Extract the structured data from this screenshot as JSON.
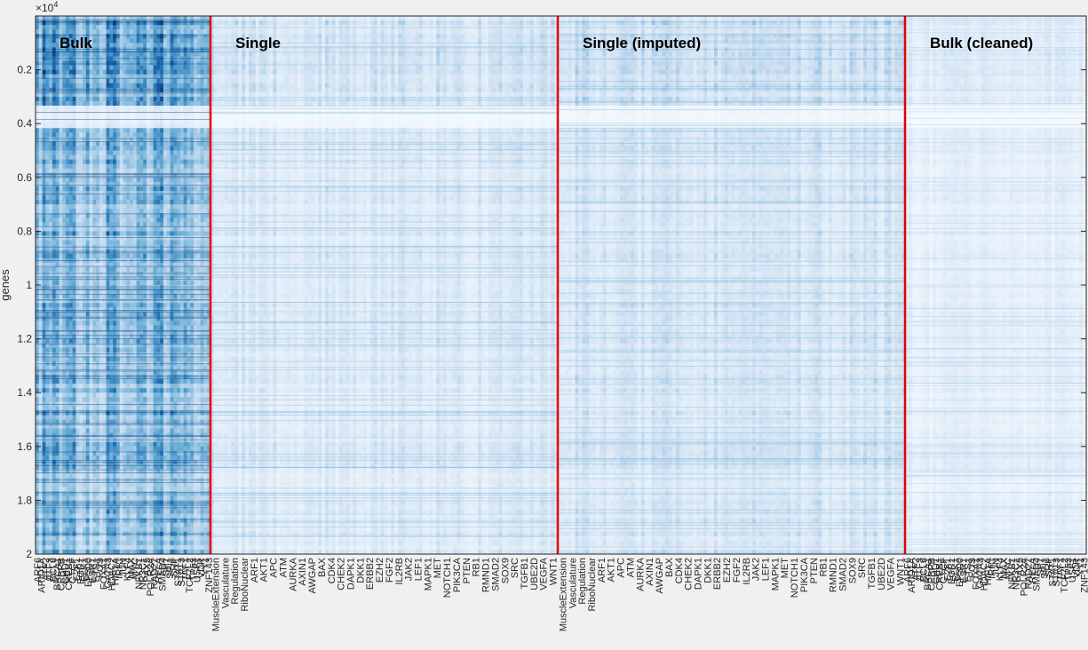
{
  "chart_data": {
    "type": "heatmap",
    "title": "",
    "ylabel": "genes",
    "xlabel": "",
    "y_exponent_label": "×10",
    "y_exponent_power": "4",
    "ylim": [
      0,
      20000
    ],
    "yticks": [
      {
        "value": 2000,
        "label": "0.2"
      },
      {
        "value": 4000,
        "label": "0.4"
      },
      {
        "value": 6000,
        "label": "0.6"
      },
      {
        "value": 8000,
        "label": "0.8"
      },
      {
        "value": 10000,
        "label": "1"
      },
      {
        "value": 12000,
        "label": "1.2"
      },
      {
        "value": 14000,
        "label": "1.4"
      },
      {
        "value": 16000,
        "label": "1.6"
      },
      {
        "value": 18000,
        "label": "1.8"
      },
      {
        "value": 20000,
        "label": "2"
      }
    ],
    "colormap": [
      "#f7fbff",
      "#c6dbef",
      "#6baed6",
      "#2171b5",
      "#08306b"
    ],
    "divider_color": "#e60000",
    "sections": [
      {
        "name": "Bulk",
        "columns": 52,
        "intensity": 0.42
      },
      {
        "name": "Single",
        "columns": 100,
        "intensity": 0.14
      },
      {
        "name": "Single (imputed)",
        "columns": 100,
        "intensity": 0.16
      },
      {
        "name": "Bulk (cleaned)",
        "columns": 52,
        "intensity": 0.09
      }
    ],
    "bulk_column_labels": [
      "ARF6",
      "ARID1A",
      "ATF2",
      "ATF3",
      "BCL6",
      "BRCA1",
      "CEBPB",
      "CHD1",
      "CREB1",
      "CTCF",
      "E2F1",
      "EGR1",
      "ELK1",
      "EP300",
      "ESR1",
      "ETS1",
      "FOS",
      "FOXA1",
      "GATA3",
      "HDAC2",
      "HIF1A",
      "IRF1",
      "JUN",
      "KLF4",
      "MAX",
      "MYC",
      "NFKB1",
      "NR3C1",
      "PAX5",
      "POLR2A",
      "RAD21",
      "RELA",
      "SMAD4",
      "SP1",
      "SPI1",
      "SRF",
      "STAT1",
      "STAT3",
      "TAF1",
      "TCF7L2",
      "TP53",
      "USF1",
      "VDR",
      "YY1",
      "ZNF143"
    ],
    "single_column_labels": [
      "MuscleExtension",
      "Vasculature",
      "Regulation",
      "RiboNuclear",
      "ARF1",
      "AKT1",
      "APC",
      "ATM",
      "AURKA",
      "AXIN1",
      "AWGAP",
      "BAX",
      "CDK4",
      "CHEK2",
      "DAPK1",
      "DKK1",
      "ERBB2",
      "EZH2",
      "FGF2",
      "IL2RB",
      "JAK2",
      "LEF1",
      "MAPK1",
      "MET",
      "NOTCH1",
      "PIK3CA",
      "PTEN",
      "RB1",
      "RMND1",
      "SMAD2",
      "SOX9",
      "SRC",
      "TGFB1",
      "UBE2D",
      "VEGFA",
      "WNT1"
    ]
  }
}
